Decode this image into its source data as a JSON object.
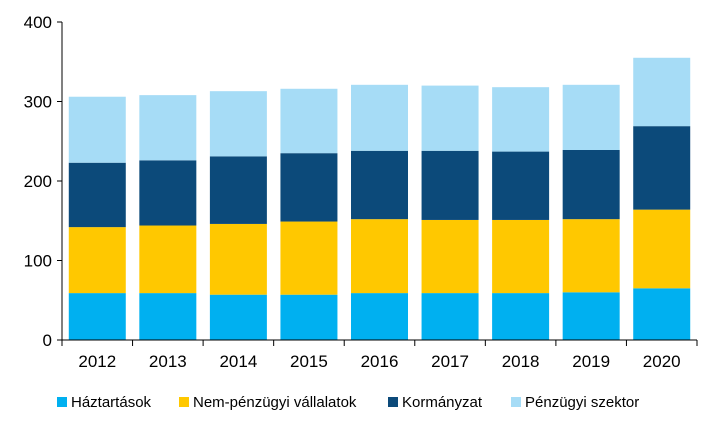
{
  "chart_data": {
    "type": "bar",
    "stacked": true,
    "title": "",
    "xlabel": "",
    "ylabel": "",
    "ylim": [
      0,
      400
    ],
    "yticks": [
      0,
      100,
      200,
      300,
      400
    ],
    "grid": false,
    "legend_position": "bottom",
    "categories": [
      "2012",
      "2013",
      "2014",
      "2015",
      "2016",
      "2017",
      "2018",
      "2019",
      "2020"
    ],
    "series": [
      {
        "name": "Háztartások",
        "color": "#00B0F0",
        "values": [
          59,
          59,
          57,
          57,
          59,
          59,
          59,
          60,
          65
        ]
      },
      {
        "name": "Nem-pénzügyi vállalatok",
        "color": "#FFC800",
        "values": [
          83,
          85,
          89,
          92,
          93,
          92,
          92,
          92,
          99
        ]
      },
      {
        "name": "Kormányzat",
        "color": "#0C4A7A",
        "values": [
          81,
          82,
          85,
          86,
          86,
          87,
          86,
          87,
          105
        ]
      },
      {
        "name": "Pénzügyi szektor",
        "color": "#A6DCF6",
        "values": [
          83,
          82,
          82,
          81,
          83,
          82,
          81,
          82,
          86
        ]
      }
    ]
  }
}
